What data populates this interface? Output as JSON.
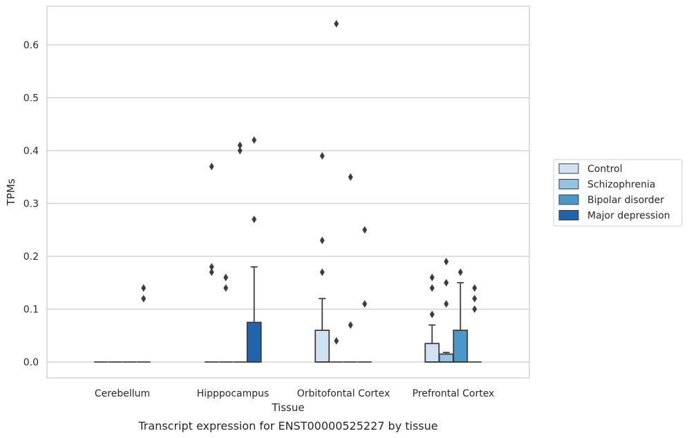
{
  "chart_data": {
    "type": "box",
    "caption": "Transcript expression for ENST00000525227 by tissue",
    "xlabel": "Tissue",
    "ylabel": "TPMs",
    "ylim": [
      -0.032,
      0.675
    ],
    "yticks": [
      0.0,
      0.1,
      0.2,
      0.3,
      0.4,
      0.5,
      0.6
    ],
    "ytick_labels": [
      "0.0",
      "0.1",
      "0.2",
      "0.3",
      "0.4",
      "0.5",
      "0.6"
    ],
    "grid": "horizontal",
    "legend_placement": "right",
    "categories": [
      "Cerebellum",
      "Hipppocampus",
      "Orbitofontal Cortex",
      "Prefrontal Cortex"
    ],
    "series": [
      {
        "name": "Control",
        "color": "#d0e1f2",
        "boxes": [
          {
            "q1": 0,
            "median": 0,
            "q3": 0,
            "whisker_low": 0,
            "whisker_high": 0,
            "outliers": []
          },
          {
            "q1": 0,
            "median": 0,
            "q3": 0,
            "whisker_low": 0,
            "whisker_high": 0,
            "outliers": [
              0.37,
              0.18,
              0.17
            ]
          },
          {
            "q1": 0,
            "median": 0,
            "q3": 0.06,
            "whisker_low": 0,
            "whisker_high": 0.12,
            "outliers": [
              0.39,
              0.23,
              0.17
            ]
          },
          {
            "q1": 0,
            "median": 0,
            "q3": 0.035,
            "whisker_low": 0,
            "whisker_high": 0.07,
            "outliers": [
              0.16,
              0.14,
              0.09
            ]
          }
        ]
      },
      {
        "name": "Schizophrenia",
        "color": "#94c4df",
        "boxes": [
          {
            "q1": 0,
            "median": 0,
            "q3": 0,
            "whisker_low": 0,
            "whisker_high": 0,
            "outliers": []
          },
          {
            "q1": 0,
            "median": 0,
            "q3": 0,
            "whisker_low": 0,
            "whisker_high": 0,
            "outliers": [
              0.16,
              0.14
            ]
          },
          {
            "q1": 0,
            "median": 0,
            "q3": 0,
            "whisker_low": 0,
            "whisker_high": 0,
            "outliers": [
              0.64,
              0.04
            ]
          },
          {
            "q1": 0,
            "median": 0,
            "q3": 0.015,
            "whisker_low": 0,
            "whisker_high": 0.018,
            "outliers": [
              0.19,
              0.15,
              0.11
            ]
          }
        ]
      },
      {
        "name": "Bipolar disorder",
        "color": "#4a98c9",
        "boxes": [
          {
            "q1": 0,
            "median": 0,
            "q3": 0,
            "whisker_low": 0,
            "whisker_high": 0,
            "outliers": []
          },
          {
            "q1": 0,
            "median": 0,
            "q3": 0,
            "whisker_low": 0,
            "whisker_high": 0,
            "outliers": [
              0.41,
              0.4
            ]
          },
          {
            "q1": 0,
            "median": 0,
            "q3": 0,
            "whisker_low": 0,
            "whisker_high": 0,
            "outliers": [
              0.35,
              0.07
            ]
          },
          {
            "q1": 0,
            "median": 0,
            "q3": 0.06,
            "whisker_low": 0,
            "whisker_high": 0.15,
            "outliers": [
              0.17
            ]
          }
        ]
      },
      {
        "name": "Major depression",
        "color": "#2164ab",
        "boxes": [
          {
            "q1": 0,
            "median": 0,
            "q3": 0,
            "whisker_low": 0,
            "whisker_high": 0,
            "outliers": [
              0.14,
              0.12
            ]
          },
          {
            "q1": 0,
            "median": 0,
            "q3": 0.075,
            "whisker_low": 0,
            "whisker_high": 0.18,
            "outliers": [
              0.42,
              0.27
            ]
          },
          {
            "q1": 0,
            "median": 0,
            "q3": 0,
            "whisker_low": 0,
            "whisker_high": 0,
            "outliers": [
              0.25,
              0.11
            ]
          },
          {
            "q1": 0,
            "median": 0,
            "q3": 0,
            "whisker_low": 0,
            "whisker_high": 0,
            "outliers": [
              0.14,
              0.12,
              0.1
            ]
          }
        ]
      }
    ]
  }
}
